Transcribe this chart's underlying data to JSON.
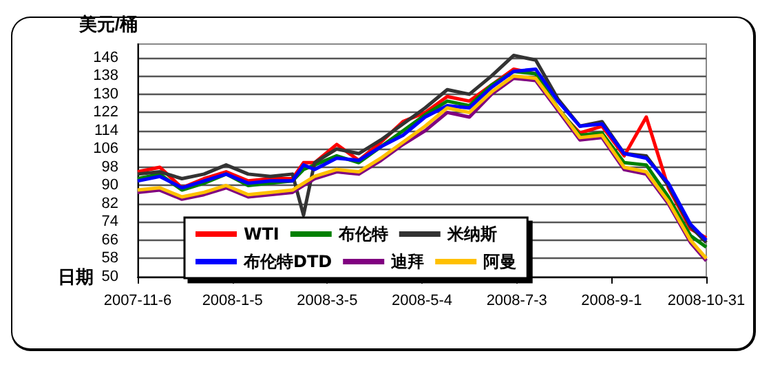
{
  "chart_data": {
    "type": "line",
    "xlabel": "日期",
    "ylabel": "美元/桶",
    "x": [
      "2007-11-06",
      "2007-11-20",
      "2007-12-04",
      "2007-12-18",
      "2008-01-01",
      "2008-01-15",
      "2008-01-29",
      "2008-02-12",
      "2008-02-19",
      "2008-02-26",
      "2008-03-11",
      "2008-03-25",
      "2008-04-08",
      "2008-04-22",
      "2008-05-06",
      "2008-05-20",
      "2008-06-03",
      "2008-06-17",
      "2008-07-01",
      "2008-07-15",
      "2008-07-29",
      "2008-08-12",
      "2008-08-26",
      "2008-09-09",
      "2008-09-23",
      "2008-10-07",
      "2008-10-21",
      "2008-10-31"
    ],
    "series": [
      {
        "name": "WTI",
        "color": "#ff0000",
        "values": [
          96,
          98,
          89,
          93,
          96,
          92,
          93,
          93,
          100,
          100,
          108,
          101,
          109,
          118,
          122,
          129,
          127,
          134,
          141,
          139,
          123,
          113,
          116,
          103,
          120,
          89,
          71,
          67
        ]
      },
      {
        "name": "布伦特",
        "color": "#008000",
        "values": [
          93,
          95,
          88,
          91,
          95,
          90,
          91,
          92,
          97,
          99,
          103,
          100,
          107,
          114,
          121,
          127,
          125,
          134,
          140,
          139,
          124,
          112,
          113,
          100,
          99,
          85,
          68,
          63
        ]
      },
      {
        "name": "米纳斯",
        "color": "#333333",
        "values": [
          95,
          96,
          93,
          95,
          99,
          95,
          94,
          95,
          77,
          100,
          106,
          104,
          110,
          117,
          124,
          132,
          130,
          138,
          147,
          145,
          128,
          116,
          118,
          104,
          103,
          90,
          72,
          65
        ]
      },
      {
        "name": "布伦特DTD",
        "color": "#0000ff",
        "values": [
          92,
          94,
          89,
          92,
          95,
          91,
          92,
          92,
          99,
          97,
          102,
          101,
          107,
          112,
          120,
          125,
          124,
          133,
          140,
          141,
          127,
          116,
          117,
          104,
          102,
          91,
          73,
          66
        ]
      },
      {
        "name": "迪拜",
        "color": "#800080",
        "values": [
          87,
          88,
          84,
          86,
          89,
          85,
          86,
          87,
          90,
          93,
          96,
          95,
          101,
          108,
          114,
          122,
          120,
          130,
          137,
          136,
          123,
          110,
          111,
          97,
          95,
          82,
          65,
          57
        ]
      },
      {
        "name": "阿曼",
        "color": "#ffc000",
        "values": [
          88,
          89,
          85,
          87,
          90,
          86,
          87,
          88,
          91,
          94,
          97,
          96,
          102,
          109,
          116,
          124,
          122,
          131,
          138,
          137,
          124,
          111,
          112,
          98,
          96,
          83,
          66,
          58
        ]
      }
    ],
    "xlim": [
      "2007-11-06",
      "2008-10-31"
    ],
    "xticks": [
      {
        "value": "2007-11-06",
        "label": "2007-11-6"
      },
      {
        "value": "2008-01-05",
        "label": "2008-1-5"
      },
      {
        "value": "2008-03-05",
        "label": "2008-3-5"
      },
      {
        "value": "2008-05-04",
        "label": "2008-5-4"
      },
      {
        "value": "2008-07-03",
        "label": "2008-7-3"
      },
      {
        "value": "2008-09-01",
        "label": "2008-9-1"
      },
      {
        "value": "2008-10-31",
        "label": "2008-10-31"
      }
    ],
    "ylim": [
      50,
      152
    ],
    "yticks": [
      50,
      58,
      66,
      74,
      82,
      90,
      98,
      106,
      114,
      122,
      130,
      138,
      146
    ],
    "grid": "y",
    "legend": "bottom",
    "marker": "none",
    "line_style": "solid"
  }
}
